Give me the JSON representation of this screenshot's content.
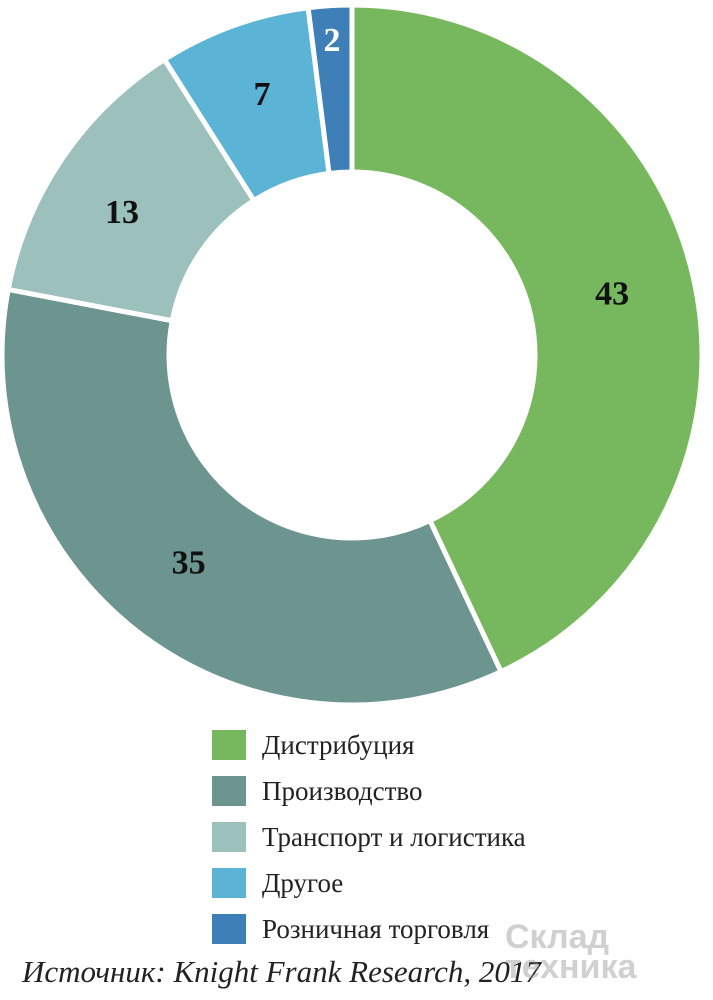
{
  "chart_data": {
    "type": "pie",
    "categories": [
      "Дистрибуция",
      "Производство",
      "Транспорт и логистика",
      "Другое",
      "Розничная торговля"
    ],
    "values": [
      43,
      35,
      13,
      7,
      2
    ],
    "colors": [
      "#77b85e",
      "#6c9590",
      "#9cc1bc",
      "#5bb4d6",
      "#3e7fb8"
    ],
    "legend_position": "bottom",
    "style": "donut"
  },
  "source": "Источник: Knight Frank Research, 2017",
  "watermark": {
    "line1": "Склад",
    "line2": "техника"
  }
}
